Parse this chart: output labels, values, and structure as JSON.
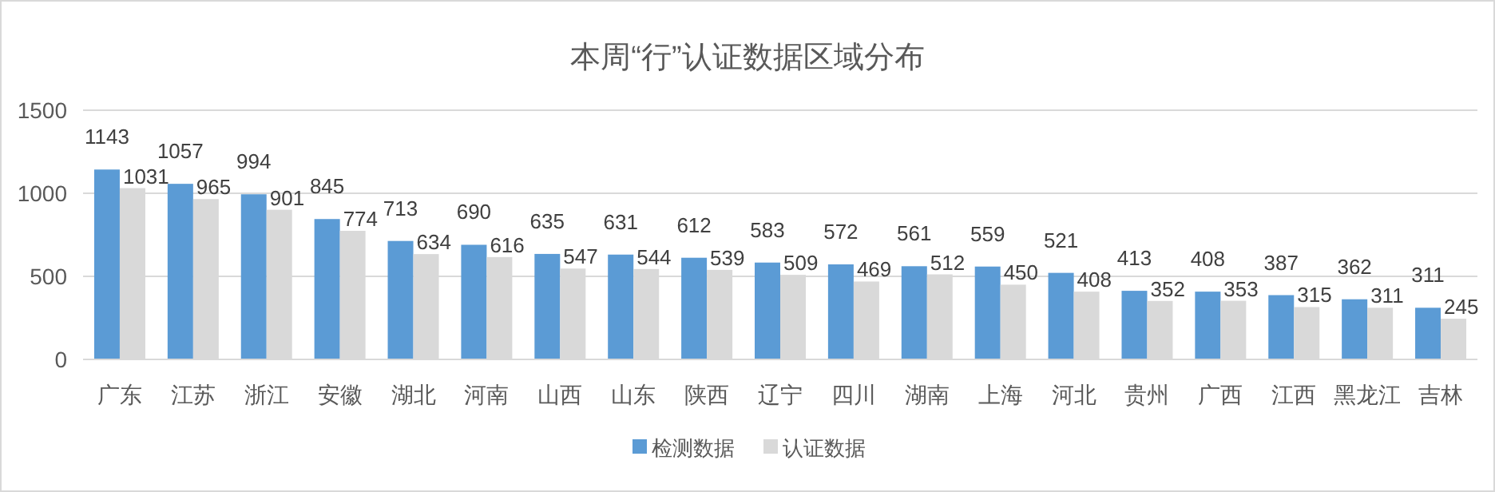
{
  "chart_data": {
    "type": "bar",
    "title": "本周“行”认证数据区域分布",
    "categories": [
      "广东",
      "江苏",
      "浙江",
      "安徽",
      "湖北",
      "河南",
      "山西",
      "山东",
      "陕西",
      "辽宁",
      "四川",
      "湖南",
      "上海",
      "河北",
      "贵州",
      "广西",
      "江西",
      "黑龙江",
      "吉林"
    ],
    "series": [
      {
        "name": "检测数据",
        "color": "#5b9bd5",
        "values": [
          1143,
          1057,
          994,
          845,
          713,
          690,
          635,
          631,
          612,
          583,
          572,
          561,
          559,
          521,
          413,
          408,
          387,
          362,
          311
        ]
      },
      {
        "name": "认证数据",
        "color": "#d9d9d9",
        "values": [
          1031,
          965,
          901,
          774,
          634,
          616,
          547,
          544,
          539,
          509,
          469,
          512,
          450,
          408,
          352,
          353,
          315,
          311,
          245
        ]
      }
    ],
    "ylim": [
      0,
      1500
    ],
    "yticks": [
      0,
      500,
      1000,
      1500
    ],
    "grid": "y",
    "legend": "bottom",
    "data_labels": true
  }
}
